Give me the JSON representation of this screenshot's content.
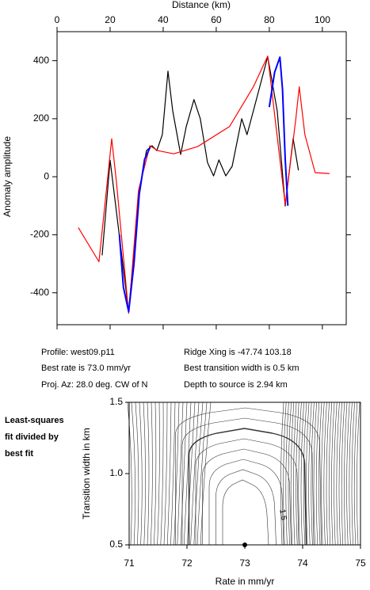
{
  "chart_data": [
    {
      "type": "line",
      "xlabel": "Distance (km)",
      "ylabel": "Anomaly amplitude",
      "xlim": [
        0,
        109
      ],
      "ylim": [
        -510,
        500
      ],
      "xticks": [
        0,
        20,
        40,
        60,
        80,
        100
      ],
      "yticks": [
        -400,
        -200,
        0,
        200,
        400
      ],
      "series": [
        {
          "color": "#000000",
          "x": [
            17,
            20,
            27,
            30.7,
            33.7,
            35.8,
            37.6,
            39.7,
            41.8,
            43.6,
            46.6,
            48.7,
            51.6,
            54,
            56.7,
            59,
            61,
            63.6,
            66,
            69.6,
            71.6,
            74,
            79.4,
            83,
            86,
            89,
            91
          ],
          "values": [
            -271,
            57,
            -466,
            -74,
            90,
            107,
            90,
            145,
            364,
            227,
            77,
            173,
            266,
            200,
            49,
            3,
            58,
            3,
            36,
            200,
            145,
            227,
            414,
            227,
            -101,
            132,
            22
          ]
        },
        {
          "color": "#ff0000",
          "x": [
            8,
            15.8,
            20.6,
            22.4,
            27,
            30.7,
            35,
            38,
            44,
            53,
            65,
            74,
            79.4,
            86,
            90,
            91.3,
            93.4,
            97.3,
            102.7
          ],
          "values": [
            -175,
            -293,
            131,
            -19,
            -471,
            -47,
            107,
            90,
            79,
            104,
            173,
            310,
            416,
            -96,
            200,
            310,
            145,
            14,
            11
          ]
        },
        {
          "color": "#0000ff",
          "x": [
            23.5,
            25,
            27,
            29,
            31,
            33,
            35,
            57,
            80,
            82,
            84,
            85,
            86,
            87
          ],
          "values": [
            -200,
            -380,
            -465,
            -300,
            -60,
            60,
            100,
            null,
            240,
            360,
            412,
            300,
            60,
            -100
          ]
        }
      ],
      "annotations": [
        "Profile: west09.p11",
        "Ridge Xing is -47.74 103.18",
        "Best rate is 73.0 mm/yr",
        "Best transition width is 0.5 km",
        "Proj. Az: 28.0 deg. CW of N",
        "Depth to source is   2.94 km"
      ]
    },
    {
      "type": "contour",
      "xlabel": "Rate in mm/yr",
      "ylabel": "Transition width in km",
      "xlim": [
        71,
        75
      ],
      "ylim": [
        0.5,
        1.5
      ],
      "xticks": [
        71,
        72,
        73,
        74,
        75
      ],
      "yticks": [
        {
          "value": 0.5,
          "label": "0.5"
        },
        {
          "value": 1.0,
          "label": "1.0"
        },
        {
          "value": 1.5,
          "label": "1.5"
        }
      ],
      "caption": [
        "Least-squares",
        "fit divided by",
        "best fit"
      ],
      "contour_label": "1.5",
      "best_point": {
        "x": [
          73.0
        ],
        "y": [
          0.5
        ]
      }
    }
  ]
}
